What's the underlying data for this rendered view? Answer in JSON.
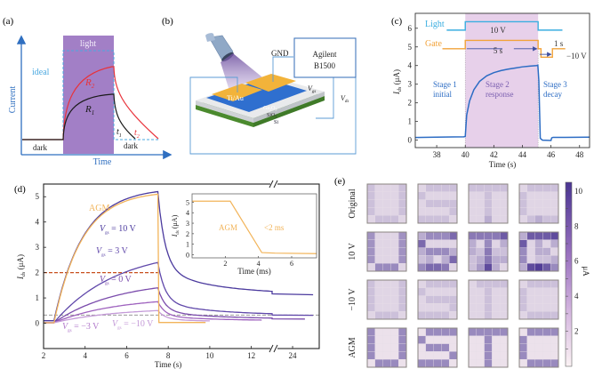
{
  "panels": {
    "a": {
      "label": "(a)"
    },
    "b": {
      "label": "(b)"
    },
    "c": {
      "label": "(c)"
    },
    "d": {
      "label": "(d)"
    },
    "e": {
      "label": "(e)"
    }
  },
  "chart_data": [
    {
      "id": "a",
      "type": "line",
      "title": "",
      "xlabel": "Time",
      "ylabel": "Current",
      "annotations": {
        "light": "light",
        "ideal": "ideal",
        "dark_left": "dark",
        "dark_right": "dark",
        "R1": "R",
        "R1_sub": "1",
        "R2": "R",
        "R2_sub": "2",
        "t1": "t",
        "t1_sub": "1",
        "t2": "t",
        "t2_sub": "2"
      },
      "series": [
        {
          "name": "ideal",
          "color": "#4aa8e0",
          "style": "dashed"
        },
        {
          "name": "R1",
          "color": "#1a1a1a"
        },
        {
          "name": "R2",
          "color": "#e8323a"
        }
      ],
      "colors": {
        "axis": "#2f6fc0",
        "light_band": "#a27fc6",
        "ideal": "#4aa8e0"
      }
    },
    {
      "id": "b",
      "type": "diagram",
      "labels": {
        "gnd": "GND",
        "instrument_line1": "Agilent",
        "instrument_line2": "B1500",
        "electrode": "Ti/Au",
        "channel": "Ga",
        "channel_sub1": "2",
        "channel_mid": "O",
        "channel_sub2": "3",
        "dielectric": "SiO",
        "dielectric_sub": "2",
        "substrate": "Si",
        "vgs": "V",
        "vgs_sub": "gs",
        "vds": "V",
        "vds_sub": "ds"
      }
    },
    {
      "id": "c",
      "type": "line",
      "xlabel": "Time (s)",
      "ylabel": "I",
      "ylabel_sub": "ds",
      "ylabel_unit": " (μA)",
      "xlim": [
        36.5,
        48.7
      ],
      "ylim": [
        -0.4,
        6.8
      ],
      "xticks": [
        38,
        40,
        42,
        44,
        46,
        48
      ],
      "yticks": [
        0,
        1,
        2,
        3,
        4,
        5,
        6
      ],
      "shaded_region": [
        40,
        45.1
      ],
      "light_signal": {
        "label": "Light",
        "low": 5.9,
        "high": 6.35,
        "on": [
          40,
          45.1
        ],
        "x": [
          38.7,
          46.8
        ],
        "color": "#3aaee0",
        "annotation": "10 V"
      },
      "gate_signal": {
        "label": "Gate",
        "base": 4.9,
        "high": 5.35,
        "low": 4.45,
        "on": [
          40,
          45.1
        ],
        "neg": [
          45.3,
          46.1
        ],
        "x": [
          38.4,
          47.0
        ],
        "color": "#f2a33a",
        "annotation_width": "5 s",
        "annotation_neg_width": "1 s",
        "annotation_neg": "−10 V"
      },
      "stages": [
        {
          "line1": "Stage  1",
          "line2": "initial"
        },
        {
          "line1": "Stage  2",
          "line2": "response"
        },
        {
          "line1": "Stage  3",
          "line2": "decay"
        }
      ],
      "series": [
        {
          "name": "Ids",
          "color": "#2c6cc4",
          "x": [
            36.5,
            38,
            39.9,
            40.0,
            40.1,
            40.3,
            40.6,
            41.0,
            41.5,
            42,
            42.5,
            43,
            43.5,
            44,
            44.5,
            45.0,
            45.08,
            45.15,
            45.25,
            45.4,
            46.0,
            46.05,
            46.15,
            47,
            48.7
          ],
          "y": [
            0.14,
            0.16,
            0.18,
            0.2,
            1.35,
            2.1,
            2.7,
            3.15,
            3.45,
            3.62,
            3.73,
            3.81,
            3.87,
            3.93,
            3.97,
            4.0,
            4.02,
            3.2,
            0.1,
            0.0,
            -0.02,
            0.12,
            0.15,
            0.15,
            0.16
          ]
        }
      ]
    },
    {
      "id": "d",
      "type": "line",
      "xlabel": "Time (s)",
      "ylabel": "I",
      "ylabel_sub": "ds",
      "ylabel_unit": " (μA)",
      "ylim": [
        -1,
        5.5
      ],
      "yticks": [
        0,
        1,
        2,
        3,
        4,
        5
      ],
      "xticks": [
        "2",
        "4",
        "6",
        "8",
        "10",
        "12",
        "24"
      ],
      "x_break": "between 13 and 23 s",
      "threshold_lines": [
        {
          "y": 2.0,
          "color": "#c8501e",
          "style": "dashed"
        },
        {
          "y": 0.32,
          "color": "#999999",
          "style": "dashed"
        }
      ],
      "series_labels": [
        {
          "name": "AGM",
          "color": "#f2b45a"
        },
        {
          "name": "V",
          "sub": "gs",
          "value": " = 10 V",
          "color": "#4b3a9e"
        },
        {
          "name": "V",
          "sub": "gs",
          "value": " = 3 V",
          "color": "#6048aa"
        },
        {
          "name": "V",
          "sub": "gs",
          "value": " = 0 V",
          "color": "#7b4cac"
        },
        {
          "name": "V",
          "sub": "gs",
          "value": " = −3 V",
          "color": "#b27acb"
        },
        {
          "name": "V",
          "sub": "gs",
          "value": " = −10 V",
          "color": "#c49ad8"
        }
      ],
      "series": [
        {
          "name": "Vgs = 10 V",
          "color": "#4b3a9e",
          "peak": 5.2,
          "rest": 0.1,
          "tail": 1.15,
          "end": 25
        },
        {
          "name": "Vgs = 3 V",
          "color": "#6048aa",
          "peak": 2.4,
          "rest": 0.02,
          "tail": 0.32,
          "end": 25
        },
        {
          "name": "Vgs = 0 V",
          "color": "#7b4cac",
          "peak": 1.4,
          "rest": 0.02,
          "tail": 0.17,
          "end": 24.6
        },
        {
          "name": "Vgs = -3 V",
          "color": "#9e62be",
          "peak": 0.85,
          "rest": 0.02,
          "tail": 0.1,
          "end": 12.5
        },
        {
          "name": "Vgs = -10 V",
          "color": "#c49ad8",
          "peak": 0.5,
          "rest": 0.02,
          "tail": 0.05,
          "end": 10
        },
        {
          "name": "AGM",
          "color": "#f2b45a",
          "peak": 5.1,
          "rest": 0.02,
          "tail": 0.03,
          "end": 9.8
        }
      ],
      "inset": {
        "xlabel": "Time (ms)",
        "ylabel": "I",
        "ylabel_sub": "ds",
        "ylabel_unit": " (μA)",
        "xlim": [
          0,
          7.5
        ],
        "ylim": [
          -0.3,
          5.8
        ],
        "xticks": [
          2,
          4,
          6
        ],
        "yticks": [
          0,
          1,
          2,
          3,
          4,
          5
        ],
        "series_label": "AGM",
        "annotation": "<2  ms",
        "series": [
          {
            "name": "AGM",
            "color": "#f2b45a",
            "x": [
              0,
              2.3,
              4.2,
              5,
              7.5
            ],
            "y": [
              5.1,
              5.1,
              0.2,
              0.15,
              0.1
            ]
          }
        ]
      }
    },
    {
      "id": "e",
      "type": "heatmap",
      "row_labels": [
        "Original",
        "10 V",
        "−10 V",
        "AGM"
      ],
      "colorbar": {
        "label": "μA",
        "ticks": [
          2,
          4,
          6,
          8,
          10
        ],
        "range": [
          0,
          10.5
        ],
        "low_color": "#fbf2f4",
        "high_color": "#4a3592"
      },
      "grids": [
        [
          [
            [
              2,
              1,
              1,
              1,
              2
            ],
            [
              2,
              1,
              1,
              1,
              2
            ],
            [
              2,
              1,
              1,
              1,
              2
            ],
            [
              2,
              1,
              1,
              1,
              2
            ],
            [
              1,
              2,
              2,
              2,
              1
            ]
          ],
          [
            [
              1,
              2,
              2,
              2,
              2
            ],
            [
              2,
              1,
              1,
              1,
              1
            ],
            [
              1,
              2,
              2,
              2,
              2
            ],
            [
              1,
              1,
              1,
              1,
              2
            ],
            [
              2,
              2,
              2,
              2,
              1
            ]
          ],
          [
            [
              2,
              2,
              2,
              2,
              2
            ],
            [
              1,
              1,
              2,
              1,
              1
            ],
            [
              1,
              1,
              2,
              1,
              1
            ],
            [
              1,
              1,
              2,
              1,
              1
            ],
            [
              1,
              1,
              3,
              1,
              1
            ]
          ],
          [
            [
              1,
              2,
              2,
              2,
              2
            ],
            [
              2,
              1,
              1,
              1,
              1
            ],
            [
              2,
              1,
              1,
              1,
              1
            ],
            [
              2,
              1,
              1,
              1,
              1
            ],
            [
              1,
              2,
              3,
              2,
              2
            ]
          ]
        ],
        [
          [
            [
              4.5,
              1,
              1,
              1,
              4.5
            ],
            [
              4.5,
              1,
              1,
              1,
              4.5
            ],
            [
              4.5,
              1,
              1,
              1,
              4.5
            ],
            [
              4.5,
              1,
              1,
              1,
              4.5
            ],
            [
              1,
              5,
              5,
              5,
              1
            ]
          ],
          [
            [
              3,
              5,
              5,
              5,
              7
            ],
            [
              7,
              1,
              1,
              1,
              1
            ],
            [
              3,
              5,
              5,
              5,
              3
            ],
            [
              2,
              3,
              1,
              3,
              7
            ],
            [
              5,
              7,
              7,
              6,
              1
            ]
          ],
          [
            [
              6,
              6,
              6,
              6,
              8
            ],
            [
              3,
              1,
              5,
              1,
              3
            ],
            [
              3,
              2,
              6,
              2,
              2
            ],
            [
              2,
              3,
              6,
              3,
              3
            ],
            [
              2,
              4,
              9,
              3,
              1
            ]
          ],
          [
            [
              3,
              8,
              8,
              8,
              9
            ],
            [
              8,
              1,
              3,
              1,
              3
            ],
            [
              5,
              1,
              3,
              3,
              1
            ],
            [
              5,
              1,
              2,
              2,
              3
            ],
            [
              3,
              9,
              10,
              8,
              5
            ]
          ]
        ],
        [
          [
            [
              2,
              1,
              1,
              1,
              2
            ],
            [
              2,
              1,
              1,
              1,
              2
            ],
            [
              2,
              1,
              1,
              1,
              2
            ],
            [
              2,
              1,
              1,
              1,
              2
            ],
            [
              1,
              2,
              2,
              2,
              1
            ]
          ],
          [
            [
              1,
              2,
              2,
              2,
              2
            ],
            [
              2,
              1,
              1,
              1,
              1
            ],
            [
              1,
              2,
              2,
              2,
              2
            ],
            [
              1,
              1,
              1,
              1,
              2
            ],
            [
              2,
              2,
              2,
              2,
              1
            ]
          ],
          [
            [
              1,
              2,
              2,
              2,
              2
            ],
            [
              1,
              1,
              2,
              1,
              1
            ],
            [
              1,
              1,
              2,
              1,
              1
            ],
            [
              1,
              1,
              2,
              1,
              1
            ],
            [
              1,
              1,
              2,
              1,
              1
            ]
          ],
          [
            [
              1,
              2,
              2,
              2,
              2
            ],
            [
              2,
              1,
              1,
              1,
              1
            ],
            [
              2,
              1,
              1,
              1,
              1
            ],
            [
              2,
              1,
              1,
              1,
              1
            ],
            [
              1,
              2,
              2,
              2,
              2
            ]
          ]
        ],
        [
          [
            [
              5,
              0.5,
              0.5,
              0.5,
              5
            ],
            [
              5,
              0.5,
              0.5,
              0.5,
              5
            ],
            [
              5,
              0.5,
              0.5,
              0.5,
              5
            ],
            [
              5,
              0.5,
              0.5,
              0.5,
              5
            ],
            [
              0.5,
              5,
              5,
              5,
              0.5
            ]
          ],
          [
            [
              0.5,
              5,
              5,
              5,
              5
            ],
            [
              5,
              0.5,
              0.5,
              0.5,
              0.5
            ],
            [
              0.5,
              5,
              5,
              5,
              0.5
            ],
            [
              0.5,
              0.5,
              0.5,
              0.5,
              5
            ],
            [
              5,
              5,
              5,
              5,
              0.5
            ]
          ],
          [
            [
              5,
              5,
              5,
              5,
              5
            ],
            [
              0.5,
              0.5,
              5,
              0.5,
              0.5
            ],
            [
              0.5,
              0.5,
              5,
              0.5,
              0.5
            ],
            [
              0.5,
              0.5,
              5,
              0.5,
              0.5
            ],
            [
              0.5,
              0.5,
              5,
              0.5,
              0.5
            ]
          ],
          [
            [
              0.5,
              5,
              5,
              5,
              5
            ],
            [
              5,
              0.5,
              0.5,
              0.5,
              0.5
            ],
            [
              5,
              0.5,
              0.5,
              0.5,
              0.5
            ],
            [
              5,
              0.5,
              0.5,
              0.5,
              0.5
            ],
            [
              0.5,
              5,
              5,
              5,
              5
            ]
          ]
        ]
      ]
    }
  ]
}
